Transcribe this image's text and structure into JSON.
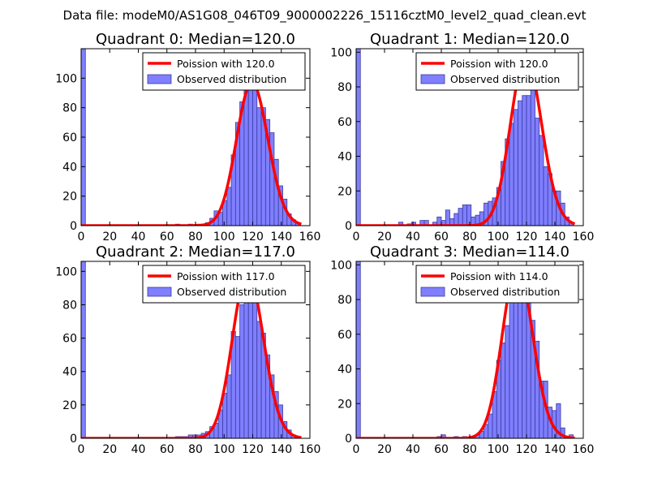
{
  "suptitle": "Data file: modeM0/AS1G08_046T09_9000002226_15116cztM0_level2_quad_clean.evt",
  "colors": {
    "bar_fill": "#7f7fff",
    "bar_edge": "#3a3aa0",
    "curve": "#ff0000",
    "axes": "#000000",
    "background": "#ffffff"
  },
  "chart_data": [
    {
      "type": "bar",
      "title": "Quadrant 0: Median=120.0",
      "xlim": [
        0,
        160
      ],
      "ylim": [
        0,
        120
      ],
      "xticks": [
        0,
        20,
        40,
        60,
        80,
        100,
        120,
        140,
        160
      ],
      "yticks": [
        0,
        20,
        40,
        60,
        80,
        100
      ],
      "legend": {
        "position": "top-right",
        "entries": [
          "Poission with 120.0",
          "Observed distribution"
        ]
      },
      "bin_width": 3,
      "bars": [
        {
          "x": 0,
          "y": 120
        },
        {
          "x": 66,
          "y": 1
        },
        {
          "x": 75,
          "y": 1
        },
        {
          "x": 81,
          "y": 1
        },
        {
          "x": 87,
          "y": 2
        },
        {
          "x": 90,
          "y": 5
        },
        {
          "x": 93,
          "y": 10
        },
        {
          "x": 96,
          "y": 9
        },
        {
          "x": 99,
          "y": 17
        },
        {
          "x": 102,
          "y": 26
        },
        {
          "x": 105,
          "y": 48
        },
        {
          "x": 108,
          "y": 70
        },
        {
          "x": 111,
          "y": 84
        },
        {
          "x": 114,
          "y": 95
        },
        {
          "x": 117,
          "y": 105
        },
        {
          "x": 120,
          "y": 112
        },
        {
          "x": 123,
          "y": 80
        },
        {
          "x": 126,
          "y": 80
        },
        {
          "x": 129,
          "y": 72
        },
        {
          "x": 132,
          "y": 63
        },
        {
          "x": 135,
          "y": 45
        },
        {
          "x": 138,
          "y": 27
        },
        {
          "x": 141,
          "y": 18
        },
        {
          "x": 144,
          "y": 8
        },
        {
          "x": 147,
          "y": 4
        },
        {
          "x": 150,
          "y": 2
        }
      ],
      "curve": {
        "label": "Poission with 120.0",
        "mean": 120.0,
        "scale": 97
      }
    },
    {
      "type": "bar",
      "title": "Quadrant 1: Median=120.0",
      "xlim": [
        0,
        160
      ],
      "ylim": [
        0,
        102
      ],
      "xticks": [
        0,
        20,
        40,
        60,
        80,
        100,
        120,
        140,
        160
      ],
      "yticks": [
        0,
        20,
        40,
        60,
        80,
        100
      ],
      "legend": {
        "position": "top-right",
        "entries": [
          "Poission with 120.0",
          "Observed distribution"
        ]
      },
      "bin_width": 3,
      "bars": [
        {
          "x": 0,
          "y": 102
        },
        {
          "x": 30,
          "y": 2
        },
        {
          "x": 36,
          "y": 1
        },
        {
          "x": 39,
          "y": 2
        },
        {
          "x": 45,
          "y": 3
        },
        {
          "x": 48,
          "y": 3
        },
        {
          "x": 54,
          "y": 2
        },
        {
          "x": 57,
          "y": 5
        },
        {
          "x": 60,
          "y": 3
        },
        {
          "x": 63,
          "y": 9
        },
        {
          "x": 66,
          "y": 4
        },
        {
          "x": 69,
          "y": 7
        },
        {
          "x": 72,
          "y": 10
        },
        {
          "x": 75,
          "y": 12
        },
        {
          "x": 78,
          "y": 12
        },
        {
          "x": 81,
          "y": 5
        },
        {
          "x": 84,
          "y": 6
        },
        {
          "x": 87,
          "y": 8
        },
        {
          "x": 90,
          "y": 13
        },
        {
          "x": 93,
          "y": 14
        },
        {
          "x": 96,
          "y": 16
        },
        {
          "x": 99,
          "y": 22
        },
        {
          "x": 102,
          "y": 37
        },
        {
          "x": 105,
          "y": 50
        },
        {
          "x": 108,
          "y": 59
        },
        {
          "x": 111,
          "y": 67
        },
        {
          "x": 114,
          "y": 72
        },
        {
          "x": 117,
          "y": 75
        },
        {
          "x": 120,
          "y": 75
        },
        {
          "x": 123,
          "y": 80
        },
        {
          "x": 126,
          "y": 62
        },
        {
          "x": 129,
          "y": 52
        },
        {
          "x": 132,
          "y": 34
        },
        {
          "x": 135,
          "y": 30
        },
        {
          "x": 138,
          "y": 20
        },
        {
          "x": 141,
          "y": 20
        },
        {
          "x": 144,
          "y": 13
        },
        {
          "x": 147,
          "y": 5
        },
        {
          "x": 150,
          "y": 2
        }
      ],
      "curve": {
        "label": "Poission with 120.0",
        "mean": 120.0,
        "scale": 97
      }
    },
    {
      "type": "bar",
      "title": "Quadrant 2: Median=117.0",
      "xlim": [
        0,
        160
      ],
      "ylim": [
        0,
        106
      ],
      "xticks": [
        0,
        20,
        40,
        60,
        80,
        100,
        120,
        140,
        160
      ],
      "yticks": [
        0,
        20,
        40,
        60,
        80,
        100
      ],
      "legend": {
        "position": "top-right",
        "entries": [
          "Poission with 117.0",
          "Observed distribution"
        ]
      },
      "bin_width": 3,
      "bars": [
        {
          "x": 0,
          "y": 106
        },
        {
          "x": 66,
          "y": 1
        },
        {
          "x": 69,
          "y": 1
        },
        {
          "x": 72,
          "y": 1
        },
        {
          "x": 75,
          "y": 2
        },
        {
          "x": 78,
          "y": 2
        },
        {
          "x": 81,
          "y": 2
        },
        {
          "x": 84,
          "y": 3
        },
        {
          "x": 87,
          "y": 4
        },
        {
          "x": 90,
          "y": 7
        },
        {
          "x": 93,
          "y": 9
        },
        {
          "x": 96,
          "y": 17
        },
        {
          "x": 99,
          "y": 27
        },
        {
          "x": 102,
          "y": 38
        },
        {
          "x": 105,
          "y": 64
        },
        {
          "x": 108,
          "y": 61
        },
        {
          "x": 111,
          "y": 80
        },
        {
          "x": 114,
          "y": 95
        },
        {
          "x": 117,
          "y": 88
        },
        {
          "x": 120,
          "y": 85
        },
        {
          "x": 123,
          "y": 70
        },
        {
          "x": 126,
          "y": 63
        },
        {
          "x": 129,
          "y": 50
        },
        {
          "x": 132,
          "y": 38
        },
        {
          "x": 135,
          "y": 28
        },
        {
          "x": 138,
          "y": 20
        },
        {
          "x": 141,
          "y": 10
        },
        {
          "x": 144,
          "y": 5
        },
        {
          "x": 147,
          "y": 2
        }
      ],
      "curve": {
        "label": "Poission with 117.0",
        "mean": 117.0,
        "scale": 99
      }
    },
    {
      "type": "bar",
      "title": "Quadrant 3: Median=114.0",
      "xlim": [
        0,
        160
      ],
      "ylim": [
        0,
        102
      ],
      "xticks": [
        0,
        20,
        40,
        60,
        80,
        100,
        120,
        140,
        160
      ],
      "yticks": [
        0,
        20,
        40,
        60,
        80,
        100
      ],
      "legend": {
        "position": "top-right",
        "entries": [
          "Poission with 114.0",
          "Observed distribution"
        ]
      },
      "bin_width": 3,
      "bars": [
        {
          "x": 0,
          "y": 102
        },
        {
          "x": 57,
          "y": 1
        },
        {
          "x": 60,
          "y": 2
        },
        {
          "x": 69,
          "y": 1
        },
        {
          "x": 75,
          "y": 1
        },
        {
          "x": 81,
          "y": 1
        },
        {
          "x": 84,
          "y": 2
        },
        {
          "x": 87,
          "y": 4
        },
        {
          "x": 90,
          "y": 8
        },
        {
          "x": 93,
          "y": 14
        },
        {
          "x": 96,
          "y": 27
        },
        {
          "x": 99,
          "y": 45
        },
        {
          "x": 102,
          "y": 55
        },
        {
          "x": 105,
          "y": 65
        },
        {
          "x": 108,
          "y": 90
        },
        {
          "x": 111,
          "y": 98
        },
        {
          "x": 114,
          "y": 93
        },
        {
          "x": 117,
          "y": 92
        },
        {
          "x": 120,
          "y": 80
        },
        {
          "x": 123,
          "y": 68
        },
        {
          "x": 126,
          "y": 56
        },
        {
          "x": 129,
          "y": 33
        },
        {
          "x": 132,
          "y": 33
        },
        {
          "x": 135,
          "y": 18
        },
        {
          "x": 138,
          "y": 16
        },
        {
          "x": 141,
          "y": 20
        },
        {
          "x": 144,
          "y": 6
        },
        {
          "x": 147,
          "y": 1
        },
        {
          "x": 150,
          "y": 2
        }
      ],
      "curve": {
        "label": "Poission with 114.0",
        "mean": 114.0,
        "scale": 99
      }
    }
  ]
}
